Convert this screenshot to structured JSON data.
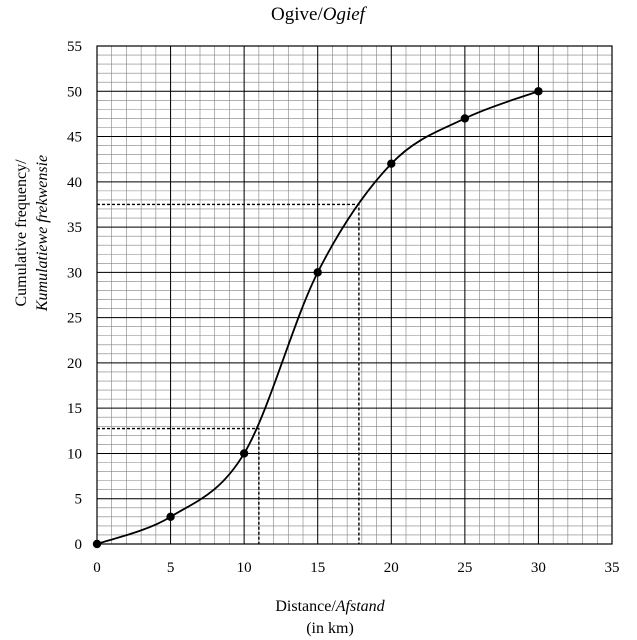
{
  "chart_data": {
    "type": "line",
    "title": "Ogive/",
    "title_italic": "Ogief",
    "xlabel": "Distance/",
    "xlabel_italic": "Afstand",
    "xlabel_line2": "(in km)",
    "ylabel": "Cumulative frequency/",
    "ylabel_italic": "Kumulatiewe frekwensie",
    "xlim": [
      0,
      35
    ],
    "ylim": [
      0,
      55
    ],
    "x_ticks": [
      "0",
      "5",
      "10",
      "15",
      "20",
      "25",
      "30",
      "35"
    ],
    "y_ticks": [
      "0",
      "5",
      "10",
      "15",
      "20",
      "25",
      "30",
      "35",
      "40",
      "45",
      "50",
      "55"
    ],
    "grid": true,
    "series": [
      {
        "x": [
          0,
          5,
          10,
          15,
          20,
          25,
          30
        ],
        "y": [
          0,
          3,
          10,
          30,
          42,
          47,
          50
        ],
        "smooth": true,
        "markers": true
      }
    ],
    "reference_lines": [
      {
        "x": 11,
        "y": 12.75
      },
      {
        "x": 17.8,
        "y": 37.5
      }
    ],
    "colors": {
      "line": "#000000",
      "major_grid": "#000000",
      "minor_grid": "#808080"
    }
  }
}
